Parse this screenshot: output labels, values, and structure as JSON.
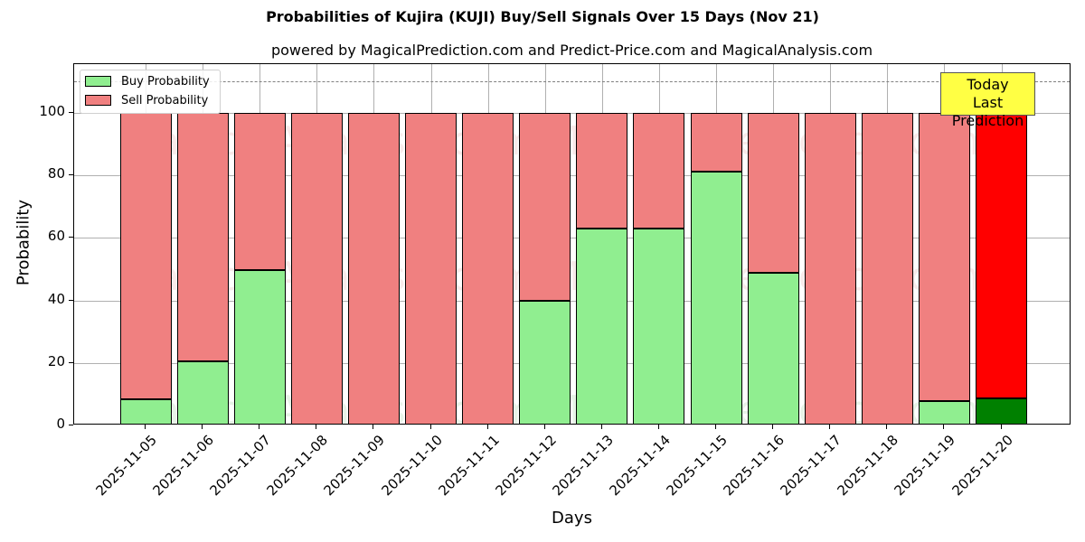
{
  "chart_data": {
    "type": "bar",
    "stacked": true,
    "title": "Probabilities of Kujira (KUJI) Buy/Sell Signals Over 15 Days (Nov 21)",
    "subtitle": "powered by MagicalPrediction.com and Predict-Price.com and MagicalAnalysis.com",
    "xlabel": "Days",
    "ylabel": "Probability",
    "ylim": [
      0,
      115
    ],
    "yticks": [
      0,
      20,
      40,
      60,
      80,
      100
    ],
    "grid": true,
    "legend_position": "upper left",
    "categories": [
      "2025-11-05",
      "2025-11-06",
      "2025-11-07",
      "2025-11-08",
      "2025-11-09",
      "2025-11-10",
      "2025-11-11",
      "2025-11-12",
      "2025-11-13",
      "2025-11-14",
      "2025-11-15",
      "2025-11-16",
      "2025-11-17",
      "2025-11-18",
      "2025-11-19",
      "2025-11-20"
    ],
    "series": [
      {
        "name": "Buy Probability",
        "color": "#90ee90",
        "values": [
          8.5,
          20.5,
          49.7,
          0,
          0,
          0,
          0,
          40.0,
          62.9,
          62.9,
          81.1,
          48.9,
          0,
          0,
          7.9,
          8.6
        ]
      },
      {
        "name": "Sell Probability",
        "color": "#f08080",
        "values": [
          91.5,
          79.5,
          50.3,
          100,
          100,
          100,
          100,
          60.0,
          37.1,
          37.1,
          18.9,
          51.1,
          100,
          100,
          92.1,
          91.4
        ]
      }
    ],
    "highlight": {
      "index": 15,
      "buy_color": "#008000",
      "sell_color": "#ff0000"
    },
    "reference_line": {
      "y": 110,
      "style": "dashed",
      "color": "#808080"
    },
    "annotations": [
      {
        "text": "Today\nLast Prediction",
        "line1": "Today",
        "line2": "Last Prediction",
        "x": "2025-11-20",
        "background": "#ffff44"
      }
    ],
    "watermarks": [
      "MagicalAnalysis.com",
      "MagicalPrediction.com"
    ]
  }
}
